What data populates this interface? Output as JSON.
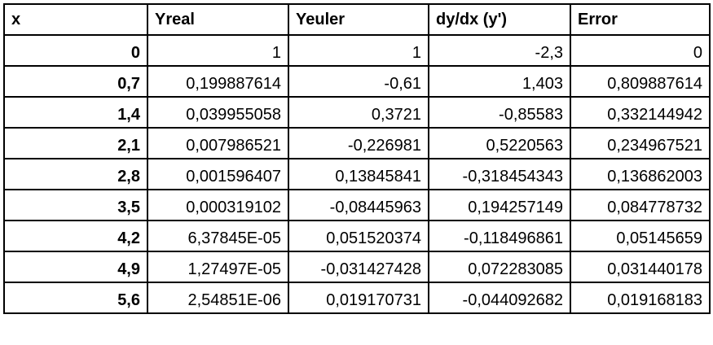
{
  "table": {
    "headers": [
      "x",
      "Yreal",
      "Yeuler",
      "dy/dx (y')",
      "Error"
    ],
    "rows": [
      [
        "0",
        "1",
        "1",
        "-2,3",
        "0"
      ],
      [
        "0,7",
        "0,199887614",
        "-0,61",
        "1,403",
        "0,809887614"
      ],
      [
        "1,4",
        "0,039955058",
        "0,3721",
        "-0,85583",
        "0,332144942"
      ],
      [
        "2,1",
        "0,007986521",
        "-0,226981",
        "0,5220563",
        "0,234967521"
      ],
      [
        "2,8",
        "0,001596407",
        "0,13845841",
        "-0,318454343",
        "0,136862003"
      ],
      [
        "3,5",
        "0,000319102",
        "-0,08445963",
        "0,194257149",
        "0,084778732"
      ],
      [
        "4,2",
        "6,37845E-05",
        "0,051520374",
        "-0,118496861",
        "0,05145659"
      ],
      [
        "4,9",
        "1,27497E-05",
        "-0,031427428",
        "0,072283085",
        "0,031440178"
      ],
      [
        "5,6",
        "2,54851E-06",
        "0,019170731",
        "-0,044092682",
        "0,019168183"
      ]
    ]
  }
}
